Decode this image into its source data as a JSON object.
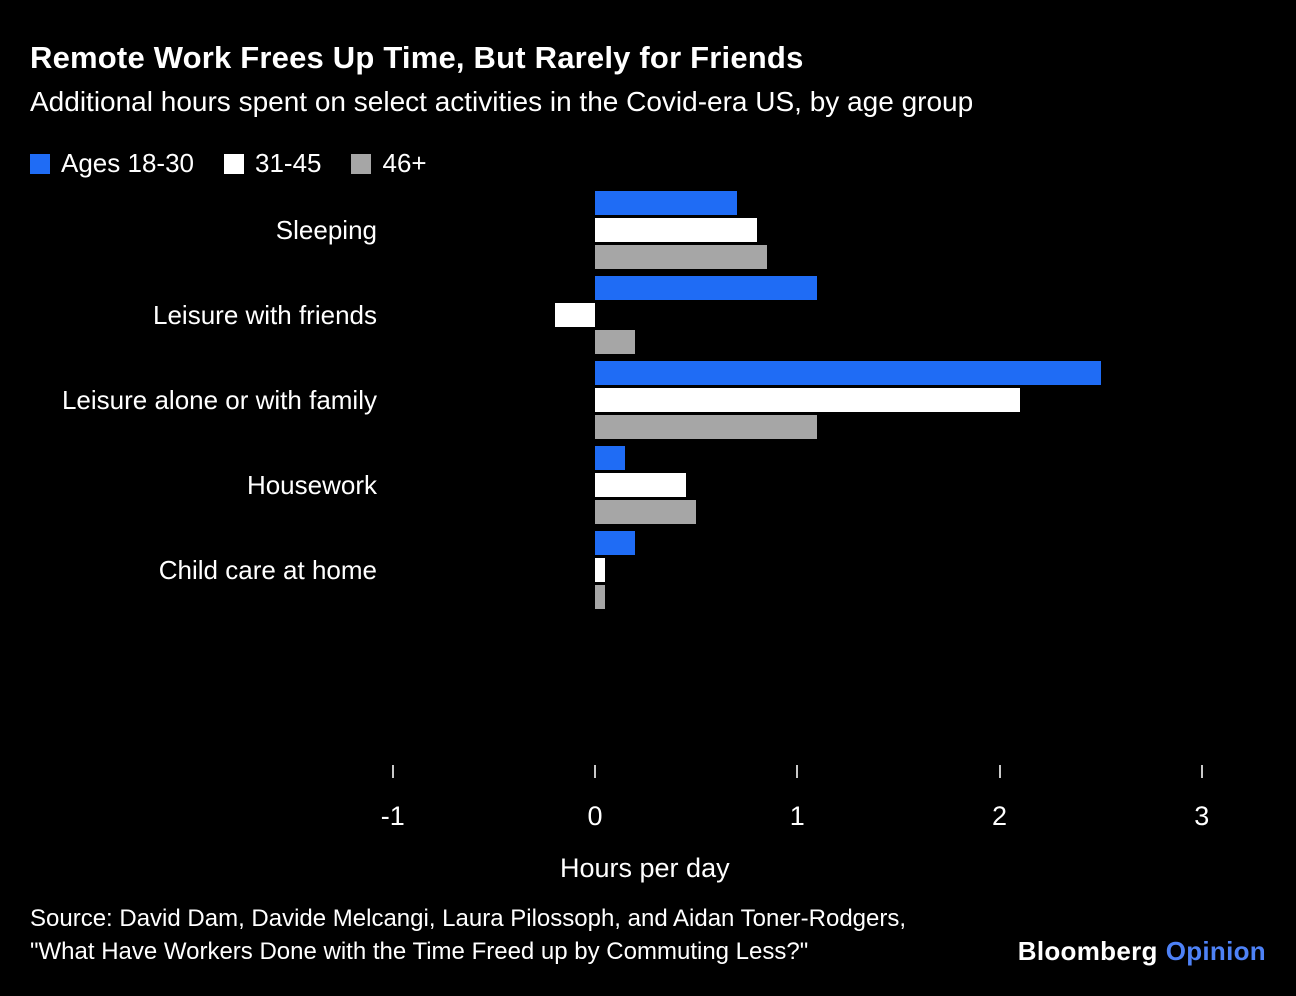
{
  "header": {
    "title": "Remote Work Frees Up Time, But Rarely for Friends",
    "subtitle": "Additional hours spent on select activities in the Covid-era US, by age group"
  },
  "legend": [
    {
      "label": "Ages 18-30",
      "color": "#1f6cf5"
    },
    {
      "label": "31-45",
      "color": "#ffffff"
    },
    {
      "label": "46+",
      "color": "#a6a6a6"
    }
  ],
  "chart_data": {
    "type": "bar",
    "orientation": "horizontal",
    "title": "Remote Work Frees Up Time, But Rarely for Friends",
    "subtitle": "Additional hours spent on select activities in the Covid-era US, by age group",
    "categories": [
      "Sleeping",
      "Leisure with friends",
      "Leisure alone or with family",
      "Housework",
      "Child care at home"
    ],
    "series": [
      {
        "name": "Ages 18-30",
        "color": "#1f6cf5",
        "values": [
          0.7,
          1.1,
          2.5,
          0.15,
          0.2
        ]
      },
      {
        "name": "31-45",
        "color": "#ffffff",
        "values": [
          0.8,
          -0.2,
          2.1,
          0.45,
          0.05
        ]
      },
      {
        "name": "46+",
        "color": "#a6a6a6",
        "values": [
          0.85,
          0.2,
          1.1,
          0.5,
          0.05
        ]
      }
    ],
    "xlabel": "Hours per day",
    "ylabel": "",
    "xlim": [
      -1,
      3
    ],
    "xticks": [
      -1,
      0,
      1,
      2,
      3
    ],
    "grid": false,
    "legend_position": "top"
  },
  "footer": {
    "source_line1": "Source: David Dam, Davide Melcangi, Laura Pilossoph, and Aidan Toner-Rodgers,",
    "source_line2": "\"What Have Workers Done with the Time Freed up by Commuting Less?\"",
    "brand": "Bloomberg",
    "brand_suffix": "Opinion",
    "brand_suffix_color": "#4e82f7"
  }
}
